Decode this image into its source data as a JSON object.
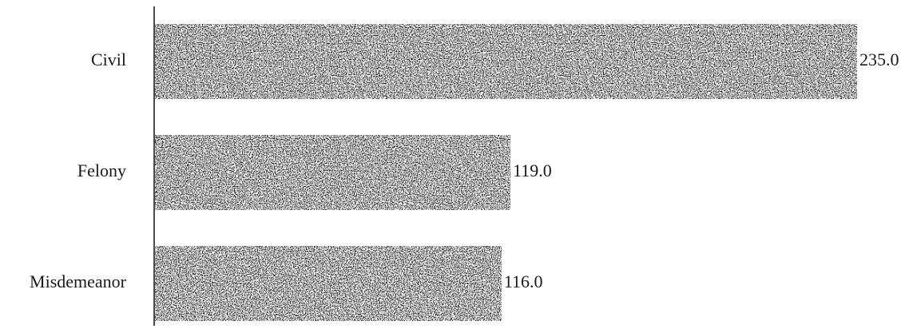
{
  "chart_data": {
    "type": "bar",
    "orientation": "horizontal",
    "categories": [
      "Civil",
      "Felony",
      "Misdemeanor"
    ],
    "values": [
      235.0,
      119.0,
      116.0
    ],
    "value_labels": [
      "235.0",
      "119.0",
      "116.0"
    ],
    "title": "",
    "xlabel": "",
    "ylabel": "",
    "xlim": [
      0,
      235
    ],
    "grid": false,
    "legend": "none",
    "bar_color": "#0d0d0d"
  }
}
